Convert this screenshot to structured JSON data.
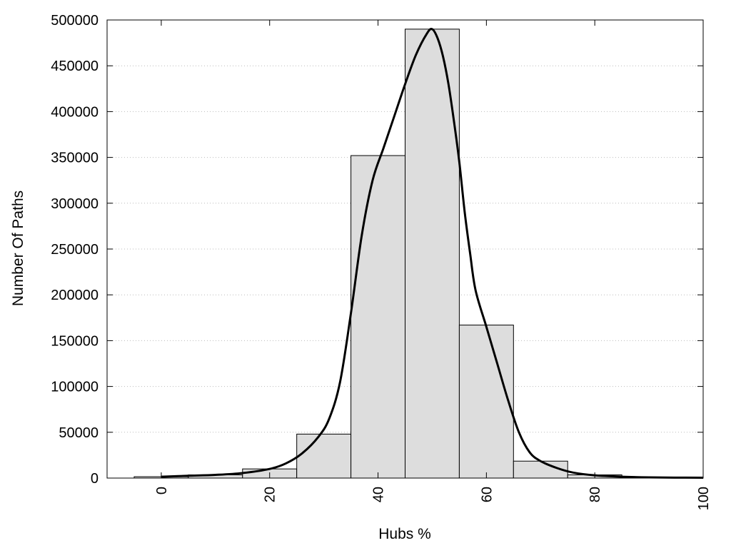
{
  "chart_data": {
    "type": "bar",
    "title": "",
    "xlabel": "Hubs %",
    "ylabel": "Number Of Paths",
    "xlim": [
      -10,
      100
    ],
    "ylim": [
      0,
      500000
    ],
    "grid": {
      "horizontal": true,
      "style": "dotted"
    },
    "x_ticks": [
      0,
      20,
      40,
      60,
      80,
      100
    ],
    "x_tick_labels": [
      "0",
      "20",
      "40",
      "60",
      "80",
      "100"
    ],
    "y_ticks": [
      0,
      50000,
      100000,
      150000,
      200000,
      250000,
      300000,
      350000,
      400000,
      450000,
      500000
    ],
    "y_tick_labels": [
      "0",
      "50000",
      "100000",
      "150000",
      "200000",
      "250000",
      "300000",
      "350000",
      "400000",
      "450000",
      "500000"
    ],
    "bin_width": 10,
    "bar_color": "#dddddd",
    "bar_edge_color": "#000000",
    "bins": [
      {
        "center": 0,
        "value": 1500
      },
      {
        "center": 10,
        "value": 3500
      },
      {
        "center": 20,
        "value": 10000
      },
      {
        "center": 30,
        "value": 48000
      },
      {
        "center": 40,
        "value": 352000
      },
      {
        "center": 50,
        "value": 490000
      },
      {
        "center": 60,
        "value": 167000
      },
      {
        "center": 70,
        "value": 18500
      },
      {
        "center": 80,
        "value": 3500
      },
      {
        "center": 90,
        "value": 800
      }
    ],
    "curve": {
      "color": "#000000",
      "points": [
        [
          0,
          1500
        ],
        [
          5,
          2500
        ],
        [
          10,
          3500
        ],
        [
          15,
          5500
        ],
        [
          20,
          10000
        ],
        [
          23,
          16000
        ],
        [
          26,
          27000
        ],
        [
          29,
          45000
        ],
        [
          31,
          65000
        ],
        [
          33,
          105000
        ],
        [
          35,
          180000
        ],
        [
          37,
          265000
        ],
        [
          39,
          325000
        ],
        [
          41,
          360000
        ],
        [
          43,
          395000
        ],
        [
          45,
          430000
        ],
        [
          47,
          462000
        ],
        [
          49,
          485000
        ],
        [
          50,
          490000
        ],
        [
          51,
          480000
        ],
        [
          52,
          460000
        ],
        [
          53,
          430000
        ],
        [
          54,
          390000
        ],
        [
          55,
          345000
        ],
        [
          56,
          290000
        ],
        [
          57,
          245000
        ],
        [
          58,
          205000
        ],
        [
          60,
          165000
        ],
        [
          62,
          125000
        ],
        [
          64,
          85000
        ],
        [
          66,
          50000
        ],
        [
          68,
          28000
        ],
        [
          70,
          18500
        ],
        [
          73,
          11000
        ],
        [
          76,
          6000
        ],
        [
          80,
          3000
        ],
        [
          85,
          1500
        ],
        [
          90,
          800
        ],
        [
          95,
          500
        ],
        [
          100,
          400
        ]
      ]
    }
  }
}
